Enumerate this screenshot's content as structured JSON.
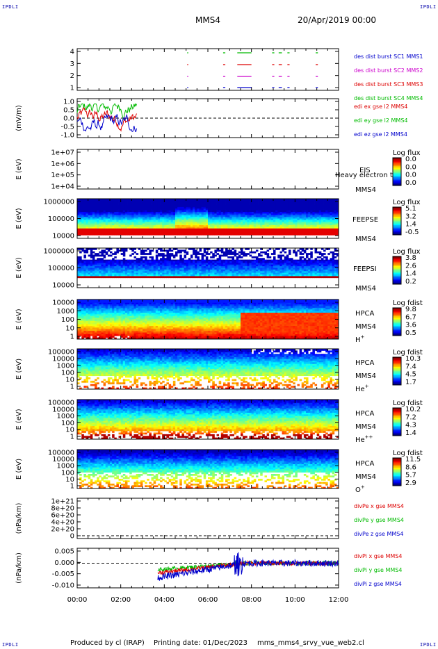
{
  "header": {
    "corner_tl": "IPDLI",
    "corner_tr": "IPDLI",
    "corner_bl": "IPDLI",
    "corner_br": "IPDLI",
    "mission": "MMS4",
    "date": "20/Apr/2019 00:00"
  },
  "footer": {
    "produced": "Produced by cl (IRAP)",
    "printing": "Printing date: 01/Dec/2023",
    "file": "mms_mms4_srvy_vue_web2.cl"
  },
  "colors": {
    "mms1": "#0000cc",
    "mms2": "#cc00cc",
    "mms3": "#dd0000",
    "mms4": "#00bb00",
    "x": "#dd0000",
    "y": "#00bb00",
    "z": "#0000cc"
  },
  "time_axis": {
    "range_hours": [
      0,
      12
    ],
    "ticks": [
      "00:00",
      "02:00",
      "04:00",
      "06:00",
      "08:00",
      "10:00",
      "12:00"
    ]
  },
  "chart_data": [
    {
      "type": "scatter",
      "panel": "burst",
      "ylim": [
        0.5,
        4.5
      ],
      "y_ticks": [
        "1",
        "2",
        "3",
        "4"
      ],
      "legend": [
        {
          "label": "des dist burst SC1 MMS1",
          "color": "#0000cc"
        },
        {
          "label": "des dist burst SC2 MMS2",
          "color": "#cc00cc"
        },
        {
          "label": "des dist burst SC3 MMS3",
          "color": "#dd0000"
        },
        {
          "label": "des dist burst SC4 MMS4",
          "color": "#00bb00"
        }
      ],
      "intervals_hours": [
        [
          5.05,
          5.1
        ],
        [
          6.7,
          6.8
        ],
        [
          7.35,
          8.0
        ],
        [
          8.95,
          9.05
        ],
        [
          9.25,
          9.4
        ],
        [
          9.65,
          9.75
        ],
        [
          10.95,
          11.05
        ]
      ]
    },
    {
      "type": "line",
      "panel": "edi",
      "ylabel": "(mV/m)",
      "ylim": [
        -1.0,
        1.0
      ],
      "y_ticks": [
        "1.0",
        "0.5",
        "0.0",
        "-0.5",
        "-1.0"
      ],
      "legend": [
        {
          "label": "edi ex gse l2 MMS4",
          "color": "#dd0000"
        },
        {
          "label": "edi ey gse l2 MMS4",
          "color": "#00bb00"
        },
        {
          "label": "edi ez gse l2 MMS4",
          "color": "#0000cc"
        }
      ],
      "data_span_hours": [
        0.0,
        2.75
      ]
    },
    {
      "type": "heatmap",
      "panel": "eis",
      "ylabel": "E (eV)",
      "y_ticks": [
        "1e+07",
        "1e+06",
        "1e+05",
        "1e+04"
      ],
      "labels": [
        "EIS",
        "MMS4",
        "Heavy electron ts"
      ],
      "colorbar": {
        "title": "Log flux",
        "ticks": [
          "0.0",
          "0.0",
          "0.0",
          "0.0"
        ]
      }
    },
    {
      "type": "heatmap",
      "panel": "feeps_e",
      "ylabel": "E (eV)",
      "y_ticks": [
        "1000000",
        "100000",
        "10000"
      ],
      "labels": [
        "FEEPSE",
        "MMS4"
      ],
      "colorbar": {
        "title": "Log flux",
        "ticks": [
          "5.1",
          "3.2",
          "1.4",
          "-0.5"
        ]
      }
    },
    {
      "type": "heatmap",
      "panel": "feeps_i",
      "ylabel": "E (eV)",
      "y_ticks": [
        "1000000",
        "100000",
        "10000"
      ],
      "labels": [
        "FEEPSI",
        "MMS4"
      ],
      "colorbar": {
        "title": "Log flux",
        "ticks": [
          "3.8",
          "2.6",
          "1.4",
          "0.2"
        ]
      }
    },
    {
      "type": "heatmap",
      "panel": "hpca_h",
      "ylabel": "E (eV)",
      "y_ticks": [
        "10000",
        "1000",
        "100",
        "10",
        "1"
      ],
      "labels": [
        "HPCA",
        "MMS4",
        "H+"
      ],
      "colorbar": {
        "title": "Log fdist",
        "ticks": [
          "9.8",
          "6.7",
          "3.6",
          "0.5"
        ]
      }
    },
    {
      "type": "heatmap",
      "panel": "hpca_he",
      "ylabel": "E (eV)",
      "y_ticks": [
        "100000",
        "10000",
        "1000",
        "100",
        "10",
        "1"
      ],
      "labels": [
        "HPCA",
        "MMS4",
        "He+"
      ],
      "colorbar": {
        "title": "Log fdist",
        "ticks": [
          "10.3",
          "7.4",
          "4.5",
          "1.7"
        ]
      }
    },
    {
      "type": "heatmap",
      "panel": "hpca_hepp",
      "ylabel": "E (eV)",
      "y_ticks": [
        "100000",
        "10000",
        "1000",
        "100",
        "10",
        "1"
      ],
      "labels": [
        "HPCA",
        "MMS4",
        "He++"
      ],
      "colorbar": {
        "title": "Log fdist",
        "ticks": [
          "10.2",
          "7.2",
          "4.3",
          "1.4"
        ]
      }
    },
    {
      "type": "heatmap",
      "panel": "hpca_o",
      "ylabel": "E (eV)",
      "y_ticks": [
        "100000",
        "10000",
        "1000",
        "100",
        "10",
        "1"
      ],
      "labels": [
        "HPCA",
        "MMS4",
        "O+"
      ],
      "colorbar": {
        "title": "Log fdist",
        "ticks": [
          "11.5",
          "8.6",
          "5.7",
          "2.9"
        ]
      }
    },
    {
      "type": "line",
      "panel": "divpe",
      "ylabel": "(nPa/km)",
      "ylim": [
        -2e+19,
        1.05e+21
      ],
      "y_ticks": [
        "1e+21",
        "8e+20",
        "6e+20",
        "4e+20",
        "2e+20",
        "0"
      ],
      "legend": [
        {
          "label": "divPe x gse MMS4",
          "color": "#dd0000"
        },
        {
          "label": "divPe y gse MMS4",
          "color": "#00bb00"
        },
        {
          "label": "divPe z gse MMS4",
          "color": "#0000cc"
        }
      ]
    },
    {
      "type": "line",
      "panel": "divpi",
      "ylabel": "(nPa/km)",
      "ylim": [
        -0.0135,
        0.0075
      ],
      "y_ticks": [
        "0.005",
        "0.000",
        "-0.005",
        "-0.010"
      ],
      "legend": [
        {
          "label": "divPi x gse MMS4",
          "color": "#dd0000"
        },
        {
          "label": "divPi y gse MMS4",
          "color": "#00bb00"
        },
        {
          "label": "divPi z gse MMS4",
          "color": "#0000cc"
        }
      ],
      "data_span_hours": [
        3.7,
        12.0
      ]
    }
  ]
}
